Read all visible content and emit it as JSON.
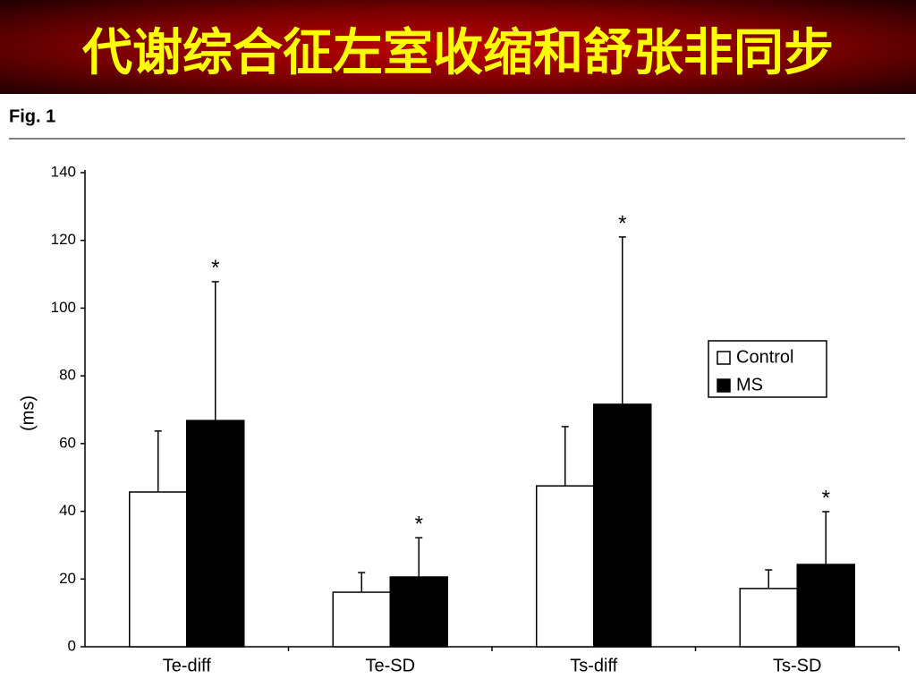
{
  "slide_title": "代谢综合征左室收缩和舒张非同步",
  "figure_label": "Fig. 1",
  "chart_data": {
    "type": "bar",
    "y_label": "(ms)",
    "categories": [
      "Te-diff",
      "Te-SD",
      "Ts-diff",
      "Ts-SD"
    ],
    "series": [
      {
        "name": "Control",
        "color": "#ffffff",
        "values": [
          45.7,
          16.1,
          47.5,
          17.2
        ],
        "errors": [
          18,
          5.8,
          17.5,
          5.5
        ]
      },
      {
        "name": "MS",
        "color": "#000000",
        "values": [
          66.8,
          20.6,
          71.6,
          24.3
        ],
        "errors": [
          41,
          11.6,
          49.4,
          15.6
        ],
        "markers": [
          "*",
          "*",
          "*",
          "*"
        ]
      }
    ],
    "ylim": [
      0,
      140
    ],
    "yticks": [
      0,
      20,
      40,
      60,
      80,
      100,
      120,
      140
    ],
    "legend": "right"
  }
}
